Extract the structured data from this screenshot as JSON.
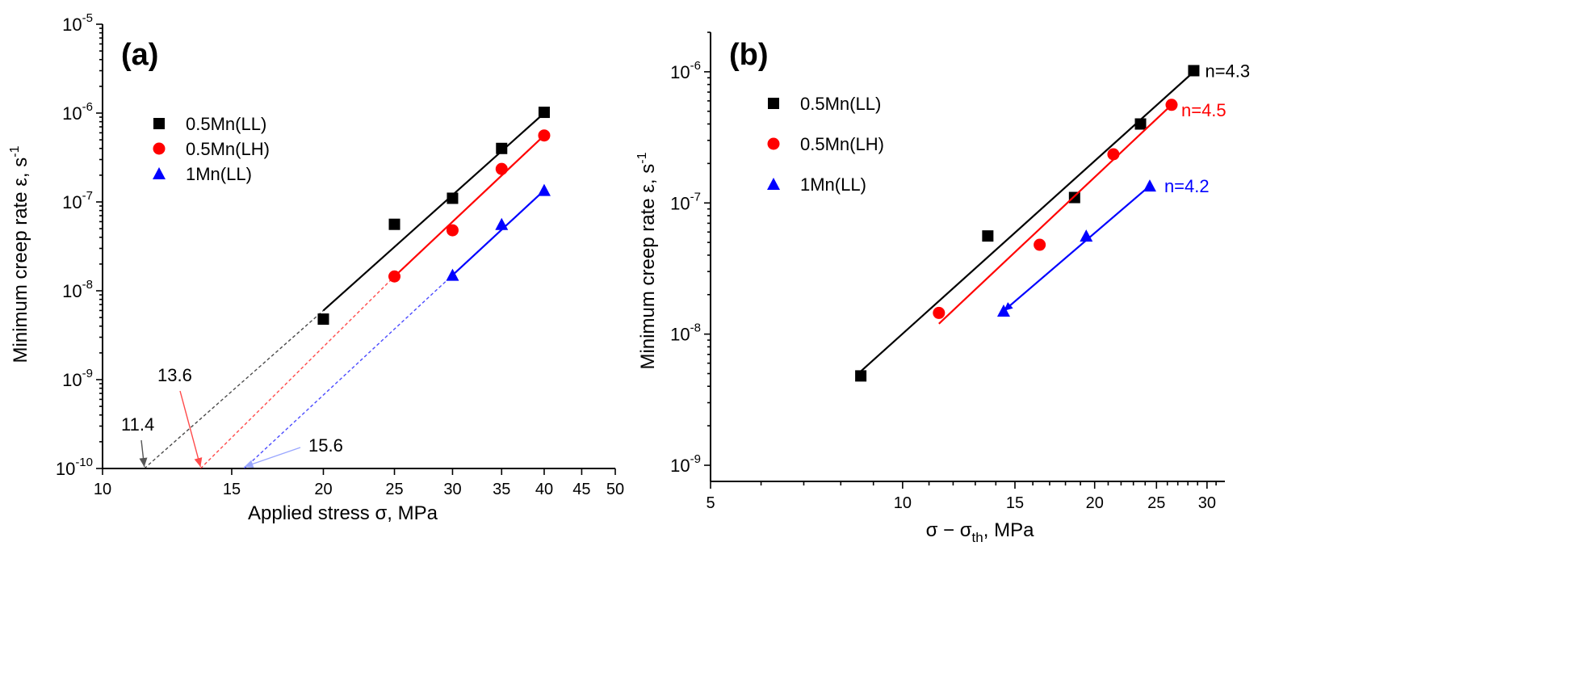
{
  "chart_data": [
    {
      "type": "scatter",
      "panel_label": "(a)",
      "xlabel": "Applied stress σ, MPa",
      "ylabel": "Minimum creep rate ε, s",
      "ylabel_sup": "-1",
      "xscale": "log",
      "yscale": "log",
      "xlim": [
        10,
        50
      ],
      "ylim": [
        1e-10,
        1e-05
      ],
      "xticks": [
        10,
        15,
        20,
        25,
        30,
        35,
        40,
        45,
        50
      ],
      "yticks": [
        {
          "exp": "-10",
          "value": 1e-10
        },
        {
          "exp": "-9",
          "value": 1e-09
        },
        {
          "exp": "-8",
          "value": 1e-08
        },
        {
          "exp": "-7",
          "value": 1e-07
        },
        {
          "exp": "-6",
          "value": 1e-06
        },
        {
          "exp": "-5",
          "value": 1e-05
        }
      ],
      "legend_position": "upper-left",
      "series": [
        {
          "name": "0.5Mn(LL)",
          "color": "#000000",
          "marker": "square",
          "x": [
            20,
            25,
            30,
            35,
            40
          ],
          "y": [
            4.8e-09,
            5.6e-08,
            1.1e-07,
            4e-07,
            1.02e-06
          ],
          "fit": [
            [
              20,
              6e-09
            ],
            [
              40,
              1e-06
            ]
          ],
          "extrapolation": [
            [
              11.4,
              1e-10
            ],
            [
              20,
              6e-09
            ]
          ],
          "threshold": {
            "label": "11.4",
            "value": 11.4
          }
        },
        {
          "name": "0.5Mn(LH)",
          "color": "#ff0000",
          "marker": "circle",
          "x": [
            25,
            30,
            35,
            40
          ],
          "y": [
            1.45e-08,
            4.8e-08,
            2.35e-07,
            5.6e-07
          ],
          "fit": [
            [
              25,
              1.45e-08
            ],
            [
              40,
              5.6e-07
            ]
          ],
          "extrapolation": [
            [
              13.6,
              1e-10
            ],
            [
              25,
              1.45e-08
            ]
          ],
          "threshold": {
            "label": "13.6",
            "value": 13.6
          }
        },
        {
          "name": "1Mn(LL)",
          "color": "#0000ff",
          "marker": "triangle",
          "x": [
            30,
            35,
            40
          ],
          "y": [
            1.5e-08,
            5.6e-08,
            1.35e-07
          ],
          "fit": [
            [
              30,
              1.5e-08
            ],
            [
              40,
              1.35e-07
            ]
          ],
          "extrapolation": [
            [
              15.6,
              1e-10
            ],
            [
              30,
              1.5e-08
            ]
          ],
          "threshold": {
            "label": "15.6",
            "value": 15.6
          }
        }
      ]
    },
    {
      "type": "scatter",
      "panel_label": "(b)",
      "xlabel_main": "σ − σ",
      "xlabel_sub": "th",
      "xlabel_tail": ", MPa",
      "ylabel": "Minimum creep rate ε, s",
      "ylabel_sup": "-1",
      "xscale": "log",
      "yscale": "log",
      "xlim": [
        5,
        32
      ],
      "ylim": [
        1e-09,
        2e-06
      ],
      "xticks": [
        5,
        10,
        15,
        20,
        25,
        30
      ],
      "yticks": [
        {
          "exp": "-9",
          "value": 1e-09
        },
        {
          "exp": "-8",
          "value": 1e-08
        },
        {
          "exp": "-7",
          "value": 1e-07
        },
        {
          "exp": "-6",
          "value": 1e-06
        }
      ],
      "legend_position": "upper-left",
      "series": [
        {
          "name": "0.5Mn(LL)",
          "color": "#000000",
          "marker": "square",
          "x": [
            8.6,
            13.6,
            18.6,
            23.6,
            28.6
          ],
          "y": [
            4.8e-09,
            5.6e-08,
            1.1e-07,
            4e-07,
            1.02e-06
          ],
          "fit": [
            [
              8.6,
              5.2e-09
            ],
            [
              28.6,
              1e-06
            ]
          ],
          "n_label": "n=4.3"
        },
        {
          "name": "0.5Mn(LH)",
          "color": "#ff0000",
          "marker": "circle",
          "x": [
            11.4,
            16.4,
            21.4,
            26.4
          ],
          "y": [
            1.45e-08,
            4.8e-08,
            2.35e-07,
            5.6e-07
          ],
          "fit": [
            [
              11.4,
              1.2e-08
            ],
            [
              26.4,
              5.6e-07
            ]
          ],
          "n_label": "n=4.5"
        },
        {
          "name": "1Mn(LL)",
          "color": "#0000ff",
          "marker": "triangle",
          "x": [
            14.4,
            19.4,
            24.4
          ],
          "y": [
            1.5e-08,
            5.6e-08,
            1.35e-07
          ],
          "fit": [
            [
              14.4,
              1.5e-08
            ],
            [
              24.4,
              1.35e-07
            ]
          ],
          "n_label": "n=4.2"
        }
      ]
    }
  ]
}
